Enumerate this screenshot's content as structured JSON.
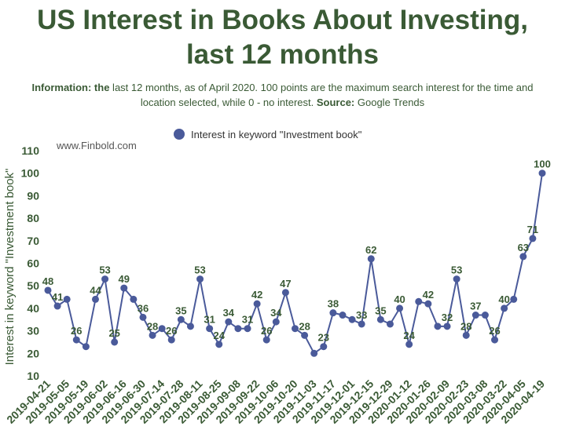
{
  "header": {
    "title_line1": "US Interest in Books About Investing,",
    "title_line2": "last 12 months",
    "info_label": "Information: the",
    "info_text": " last 12 months, as of April 2020. 100 points are the maximum search interest for the time and location selected, while 0 - no interest.",
    "source_label": "Source:",
    "source_text": " Google Trends"
  },
  "watermark": "www.Finbold.com",
  "colors": {
    "text": "#3a5a35",
    "series": "#4a5a9a"
  },
  "chart_data": {
    "type": "line",
    "title": "US Interest in Books About Investing, last 12 months",
    "ylabel": "Interest in keyword \"Investment book\"",
    "xlabel": "",
    "ylim": [
      10,
      110
    ],
    "yticks": [
      10,
      20,
      30,
      40,
      50,
      60,
      70,
      80,
      90,
      100,
      110
    ],
    "grid": false,
    "legend_position": "top-center",
    "x_tick_labels": [
      "2019-04-21",
      "2019-05-05",
      "2019-05-19",
      "2019-06-02",
      "2019-06-16",
      "2019-06-30",
      "2019-07-14",
      "2019-07-28",
      "2019-08-11",
      "2019-08-25",
      "2019-09-08",
      "2019-09-22",
      "2019-10-06",
      "2019-10-20",
      "2019-11-03",
      "2019-11-17",
      "2019-12-01",
      "2019-12-15",
      "2019-12-29",
      "2020-01-12",
      "2020-01-26",
      "2020-02-09",
      "2020-02-23",
      "2020-03-08",
      "2020-03-22",
      "2020-04-05",
      "2020-04-19"
    ],
    "series": [
      {
        "name": "Interest in keyword \"Investment book\"",
        "values": [
          48,
          41,
          44,
          26,
          23,
          44,
          53,
          25,
          49,
          44,
          36,
          28,
          31,
          26,
          35,
          32,
          53,
          31,
          24,
          34,
          31,
          31,
          42,
          26,
          34,
          47,
          31,
          28,
          20,
          23,
          38,
          37,
          35,
          33,
          62,
          35,
          33,
          40,
          24,
          43,
          42,
          32,
          32,
          53,
          28,
          37,
          37,
          26,
          40,
          44,
          63,
          71,
          100
        ],
        "labels": [
          "48",
          "41",
          "",
          "26",
          "",
          "44",
          "53",
          "25",
          "49",
          "",
          "36",
          "28",
          "",
          "26",
          "35",
          "",
          "53",
          "31",
          "24",
          "34",
          "",
          "31",
          "42",
          "26",
          "34",
          "47",
          "",
          "28",
          "",
          "23",
          "38",
          "",
          "",
          "33",
          "62",
          "35",
          "",
          "40",
          "24",
          "",
          "42",
          "",
          "32",
          "53",
          "28",
          "37",
          "",
          "26",
          "40",
          "",
          "63",
          "71",
          "100"
        ]
      }
    ]
  }
}
